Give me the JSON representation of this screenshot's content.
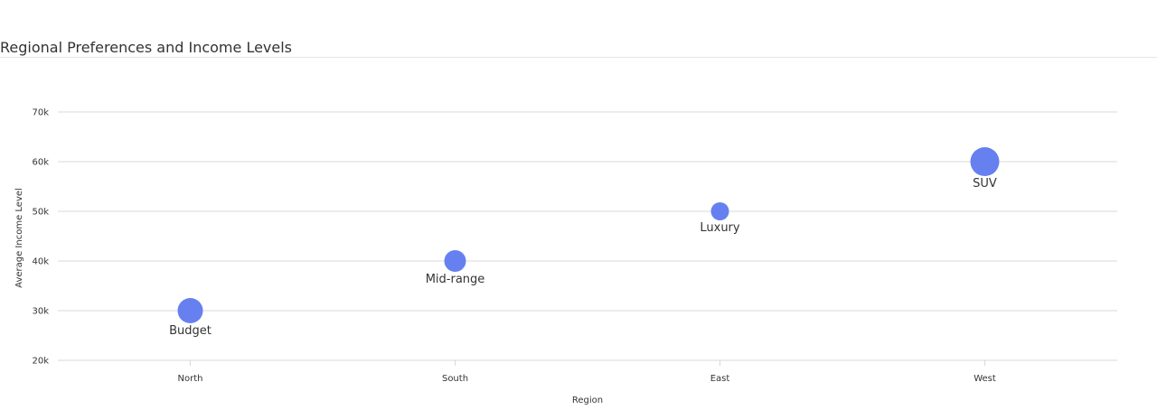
{
  "title": "Regional Preferences and Income Levels",
  "colors": {
    "bubble": "#6680f0",
    "grid": "#d9d9d9",
    "text": "#333333"
  },
  "chart_data": {
    "type": "scatter",
    "title": "Regional Preferences and Income Levels",
    "xlabel": "Region",
    "ylabel": "Average Income Level",
    "categories": [
      "North",
      "South",
      "East",
      "West"
    ],
    "ylim": [
      20000,
      70000
    ],
    "yticks": [
      "20k",
      "30k",
      "40k",
      "50k",
      "60k",
      "70k"
    ],
    "ytick_values": [
      20000,
      30000,
      40000,
      50000,
      60000,
      70000
    ],
    "grid": true,
    "points": [
      {
        "x": "North",
        "y": 30000,
        "label": "Budget",
        "size": 14
      },
      {
        "x": "South",
        "y": 40000,
        "label": "Mid-range",
        "size": 12
      },
      {
        "x": "East",
        "y": 50000,
        "label": "Luxury",
        "size": 10
      },
      {
        "x": "West",
        "y": 60000,
        "label": "SUV",
        "size": 16
      }
    ]
  }
}
